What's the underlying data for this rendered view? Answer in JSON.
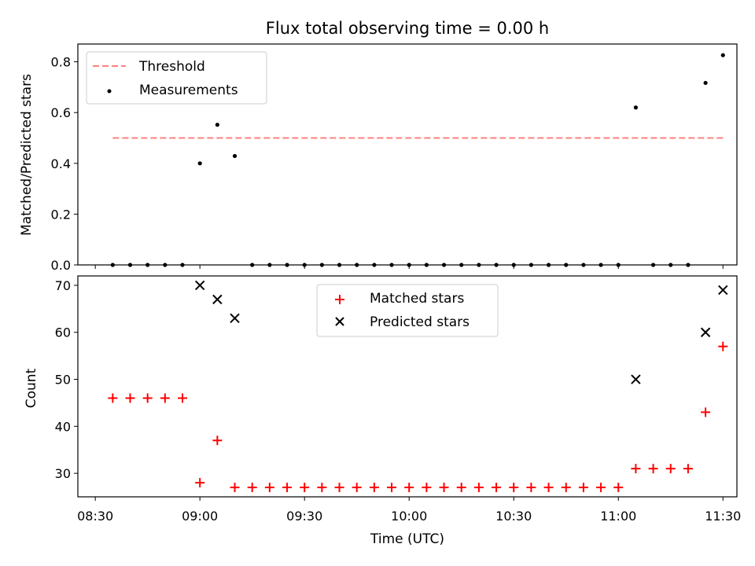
{
  "chart_data": [
    {
      "type": "scatter",
      "title": "Flux total observing time = 0.00 h",
      "xlabel": "",
      "ylabel": "Matched/Predicted stars",
      "ylim": [
        0,
        0.87
      ],
      "xlim": [
        "08:25",
        "11:34"
      ],
      "yticks": [
        "0.0",
        "0.2",
        "0.4",
        "0.6",
        "0.8"
      ],
      "threshold": {
        "name": "Threshold",
        "value": 0.5,
        "x_start": "08:35",
        "x_end": "11:30",
        "color": "#ff7f7f"
      },
      "series": [
        {
          "name": "Measurements",
          "color": "#000000",
          "points": [
            [
              "08:35",
              0.0
            ],
            [
              "08:40",
              0.0
            ],
            [
              "08:45",
              0.0
            ],
            [
              "08:50",
              0.0
            ],
            [
              "08:55",
              0.0
            ],
            [
              "09:00",
              0.4
            ],
            [
              "09:05",
              0.552
            ],
            [
              "09:10",
              0.429
            ],
            [
              "09:15",
              0.0
            ],
            [
              "09:20",
              0.0
            ],
            [
              "09:25",
              0.0
            ],
            [
              "09:30",
              0.0
            ],
            [
              "09:35",
              0.0
            ],
            [
              "09:40",
              0.0
            ],
            [
              "09:45",
              0.0
            ],
            [
              "09:50",
              0.0
            ],
            [
              "09:55",
              0.0
            ],
            [
              "10:00",
              0.0
            ],
            [
              "10:05",
              0.0
            ],
            [
              "10:10",
              0.0
            ],
            [
              "10:15",
              0.0
            ],
            [
              "10:20",
              0.0
            ],
            [
              "10:25",
              0.0
            ],
            [
              "10:30",
              0.0
            ],
            [
              "10:35",
              0.0
            ],
            [
              "10:40",
              0.0
            ],
            [
              "10:45",
              0.0
            ],
            [
              "10:50",
              0.0
            ],
            [
              "10:55",
              0.0
            ],
            [
              "11:00",
              0.0
            ],
            [
              "11:05",
              0.62
            ],
            [
              "11:10",
              0.0
            ],
            [
              "11:15",
              0.0
            ],
            [
              "11:20",
              0.0
            ],
            [
              "11:25",
              0.717
            ],
            [
              "11:30",
              0.826
            ]
          ]
        }
      ],
      "legend": "upper left",
      "grid": false
    },
    {
      "type": "scatter",
      "title": "",
      "xlabel": "Time (UTC)",
      "ylabel": "Count",
      "ylim": [
        25,
        72
      ],
      "xlim": [
        "08:25",
        "11:34"
      ],
      "yticks": [
        "30",
        "40",
        "50",
        "60",
        "70"
      ],
      "xticks": [
        "08:30",
        "09:00",
        "09:30",
        "10:00",
        "10:30",
        "11:00",
        "11:30"
      ],
      "series": [
        {
          "name": "Matched stars",
          "marker": "plus",
          "color": "#ff0000",
          "points": [
            [
              "08:35",
              46
            ],
            [
              "08:40",
              46
            ],
            [
              "08:45",
              46
            ],
            [
              "08:50",
              46
            ],
            [
              "08:55",
              46
            ],
            [
              "09:00",
              28
            ],
            [
              "09:05",
              37
            ],
            [
              "09:10",
              27
            ],
            [
              "09:15",
              27
            ],
            [
              "09:20",
              27
            ],
            [
              "09:25",
              27
            ],
            [
              "09:30",
              27
            ],
            [
              "09:35",
              27
            ],
            [
              "09:40",
              27
            ],
            [
              "09:45",
              27
            ],
            [
              "09:50",
              27
            ],
            [
              "09:55",
              27
            ],
            [
              "10:00",
              27
            ],
            [
              "10:05",
              27
            ],
            [
              "10:10",
              27
            ],
            [
              "10:15",
              27
            ],
            [
              "10:20",
              27
            ],
            [
              "10:25",
              27
            ],
            [
              "10:30",
              27
            ],
            [
              "10:35",
              27
            ],
            [
              "10:40",
              27
            ],
            [
              "10:45",
              27
            ],
            [
              "10:50",
              27
            ],
            [
              "10:55",
              27
            ],
            [
              "11:00",
              27
            ],
            [
              "11:05",
              31
            ],
            [
              "11:10",
              31
            ],
            [
              "11:15",
              31
            ],
            [
              "11:20",
              31
            ],
            [
              "11:25",
              43
            ],
            [
              "11:30",
              57
            ]
          ]
        },
        {
          "name": "Predicted stars",
          "marker": "x",
          "color": "#000000",
          "points": [
            [
              "09:00",
              70
            ],
            [
              "09:05",
              67
            ],
            [
              "09:10",
              63
            ],
            [
              "11:05",
              50
            ],
            [
              "11:25",
              60
            ],
            [
              "11:30",
              69
            ]
          ]
        }
      ],
      "legend": "upper center",
      "grid": false
    }
  ]
}
